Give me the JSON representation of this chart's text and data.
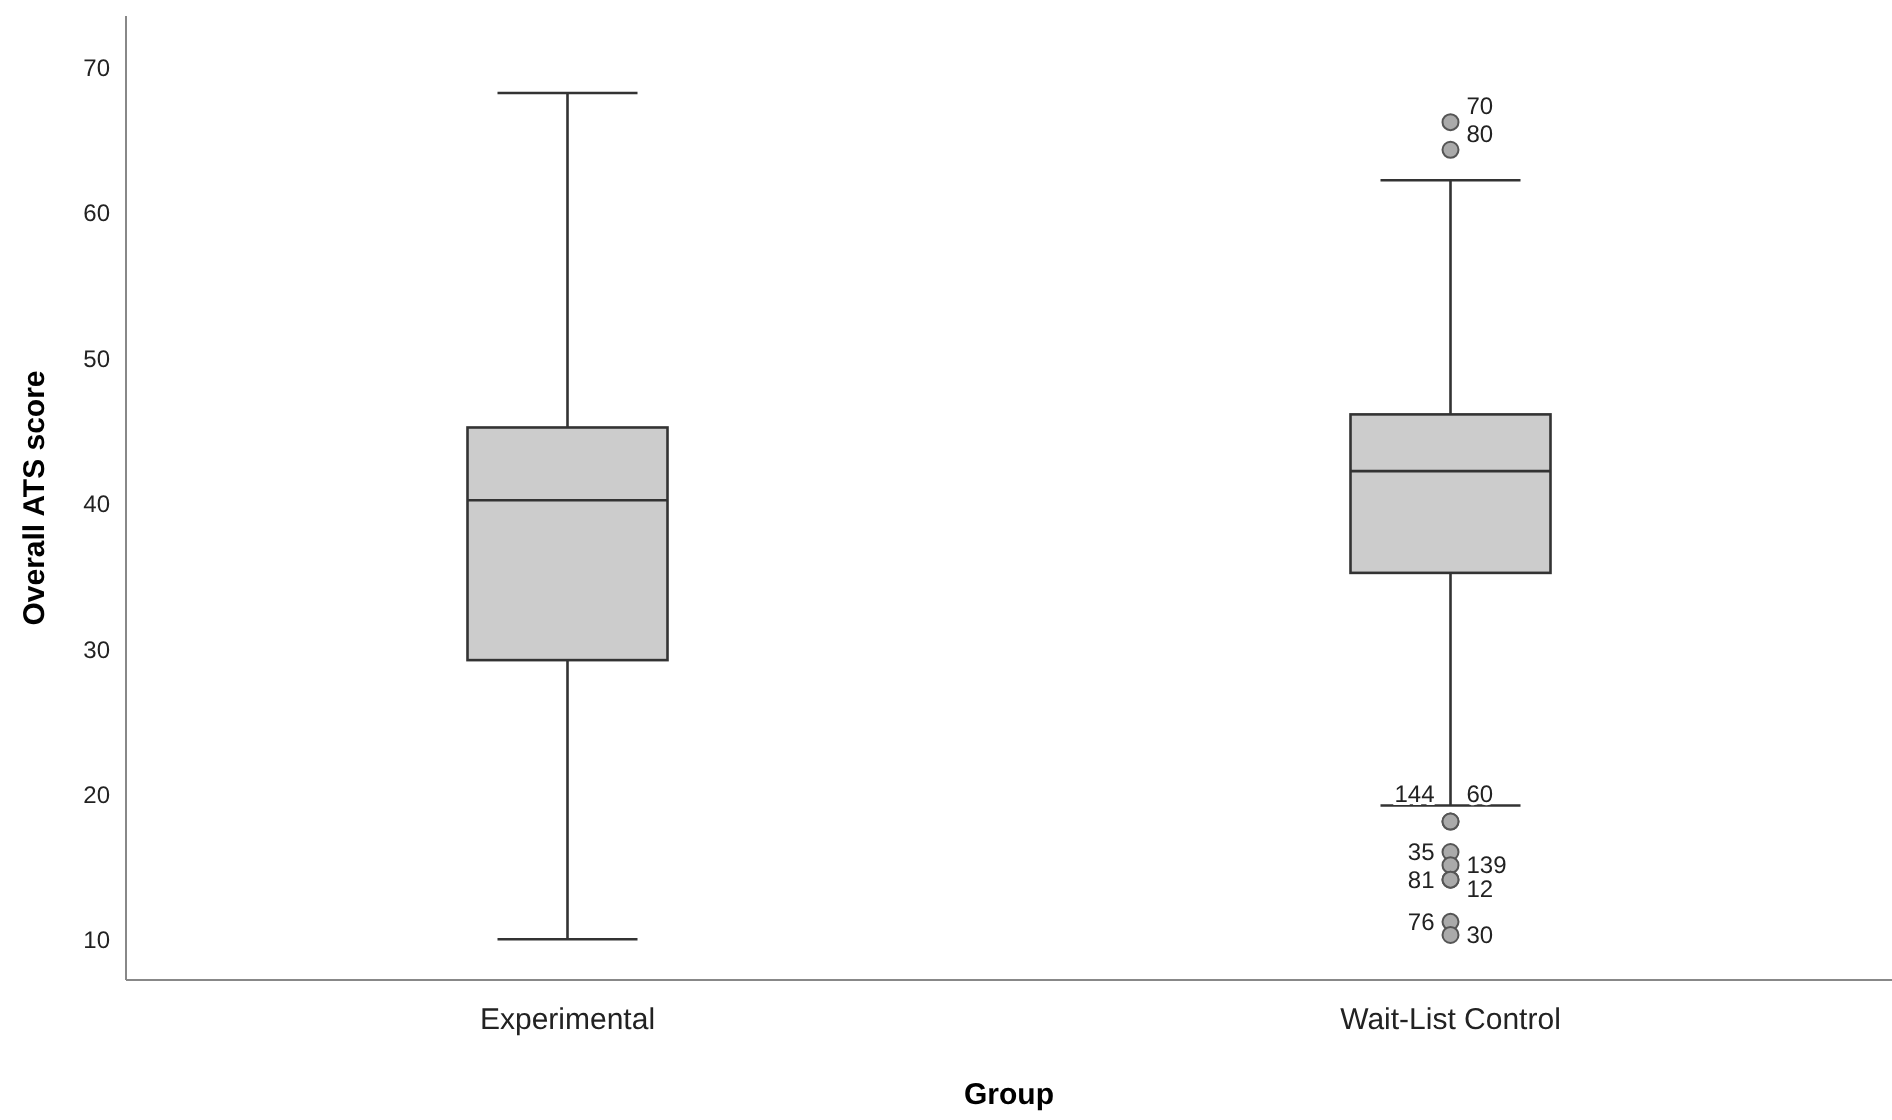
{
  "chart_data": {
    "type": "box",
    "xlabel": "Group",
    "ylabel": "Overall ATS score",
    "categories": [
      "Experimental",
      "Wait-List Control"
    ],
    "boxes": [
      {
        "low": 10.1,
        "q1": 29.3,
        "median": 40.3,
        "q3": 45.3,
        "high": 68.3
      },
      {
        "low": 19.3,
        "q1": 35.3,
        "median": 42.3,
        "q3": 46.2,
        "high": 62.3,
        "outliers": [
          66.3,
          64.4,
          18.2,
          18.2,
          16.1,
          15.2,
          14.2,
          14.2,
          11.3,
          10.4
        ]
      }
    ],
    "color": "#cccccc",
    "ylim": [
      7.3,
      73.6
    ],
    "yticks": [
      10,
      20,
      30,
      40,
      50,
      60,
      70
    ],
    "grid": false,
    "annotations": [
      "70",
      "80",
      "144",
      "60",
      "35",
      "139",
      "81",
      "12",
      "76",
      "30"
    ]
  }
}
